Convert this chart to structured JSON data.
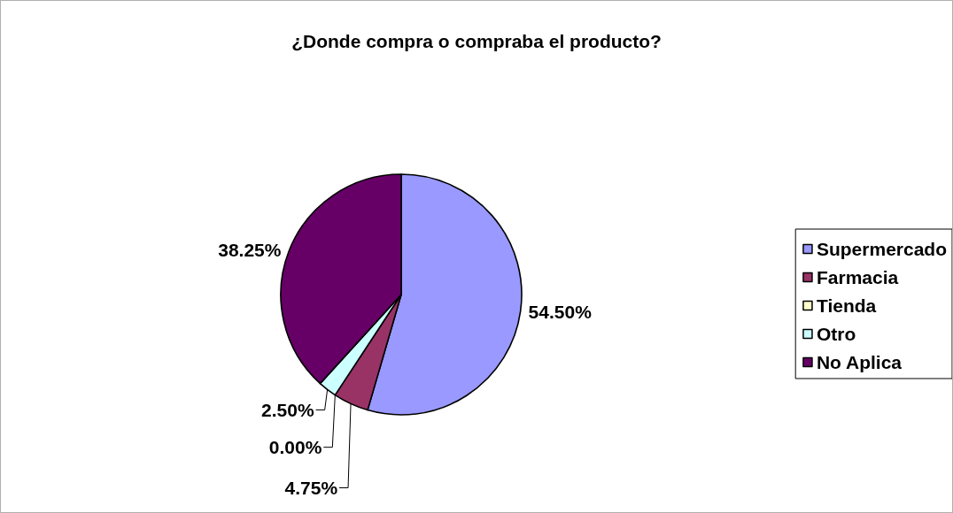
{
  "chart_data": {
    "type": "pie",
    "title": "¿Donde compra o compraba el producto?",
    "categories": [
      "Supermercado",
      "Farmacia",
      "Tienda",
      "Otro",
      "No Aplica"
    ],
    "values": [
      54.5,
      4.75,
      0,
      2.5,
      38.25
    ],
    "value_labels": [
      "54.50%",
      "4.75%",
      "0.00%",
      "2.50%",
      "38.25%"
    ],
    "colors": [
      "#9999ff",
      "#993366",
      "#ffffcc",
      "#ccffff",
      "#660066"
    ],
    "legend": "right"
  }
}
